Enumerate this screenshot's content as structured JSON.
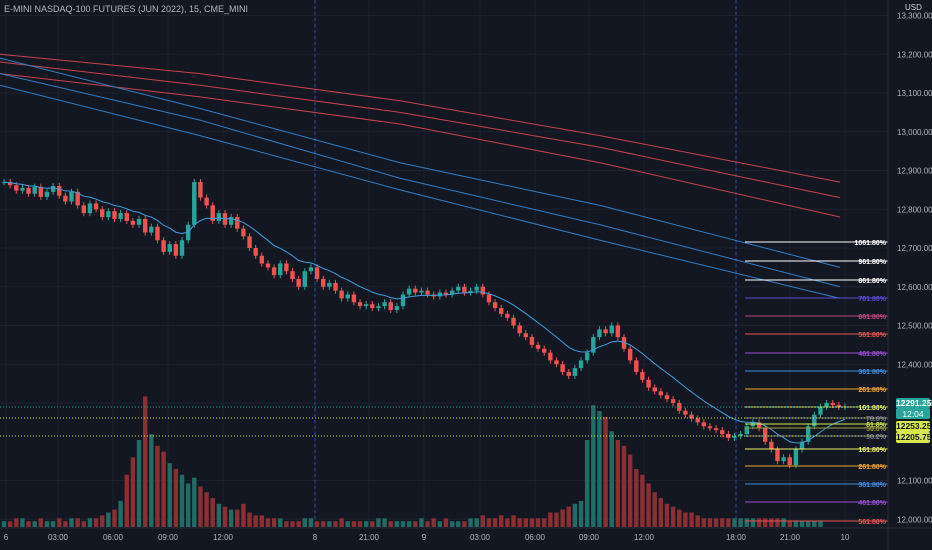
{
  "header": {
    "title": "E-MINI NASDAQ-100 FUTURES (JUN 2022), 15, CME_MINI",
    "currency": "USD"
  },
  "colors": {
    "background": "#131722",
    "up": "#26a69a",
    "down": "#ef5350",
    "vol_up": "#1f6e66",
    "vol_down": "#8b2f33",
    "ma_red": "#c9434a",
    "ma_blue": "#2f7fc9",
    "ema": "#3da0e0"
  },
  "price_axis": {
    "labels": [
      "13,300.00",
      "13,200.00",
      "13,100.00",
      "13,000.00",
      "12,900.00",
      "12,800.00",
      "12,700.00",
      "12,600.00",
      "12,500.00",
      "12,400.00",
      "12,300.00",
      "12,100.00",
      "12,000.00"
    ],
    "tags": {
      "last": "12291.25",
      "countdown": "12:04",
      "level_a": "12253.25",
      "level_b": "12205.75"
    }
  },
  "time_axis": [
    "6",
    "03:00",
    "06:00",
    "09:00",
    "12:00",
    "8",
    "21:00",
    "9",
    "03:00",
    "06:00",
    "09:00",
    "12:00",
    "18:00",
    "21:00",
    "10"
  ],
  "fib_labels": [
    {
      "text": "1061.80%",
      "color": "#ffffff"
    },
    {
      "text": "961.80%",
      "color": "#ffffff"
    },
    {
      "text": "861.80%",
      "color": "#ffffff"
    },
    {
      "text": "761.80%",
      "color": "#5b4bd6"
    },
    {
      "text": "661.80%",
      "color": "#c2457f"
    },
    {
      "text": "561.80%",
      "color": "#ef5350"
    },
    {
      "text": "461.80%",
      "color": "#9c4ed6"
    },
    {
      "text": "361.80%",
      "color": "#3d8fe0"
    },
    {
      "text": "261.80%",
      "color": "#f2a72e"
    },
    {
      "text": "161.80%",
      "color": "#eef064"
    },
    {
      "text": "78.6%",
      "color": "#7a7f8e"
    },
    {
      "text": "61.8%",
      "color": "#d6e84a"
    },
    {
      "text": "50.0%",
      "color": "#9c9f33"
    },
    {
      "text": "38.2%",
      "color": "#7a7f8e"
    },
    {
      "text": "161.80%",
      "color": "#eef064"
    },
    {
      "text": "261.80%",
      "color": "#f2a72e"
    },
    {
      "text": "361.80%",
      "color": "#3d8fe0"
    },
    {
      "text": "461.80%",
      "color": "#9c4ed6"
    },
    {
      "text": "561.80%",
      "color": "#ef5350"
    }
  ],
  "chart_data": {
    "type": "candlestick",
    "price_range": [
      11980,
      13340
    ],
    "closes": [
      12870,
      12862,
      12848,
      12855,
      12840,
      12858,
      12832,
      12845,
      12860,
      12835,
      12820,
      12845,
      12810,
      12790,
      12815,
      12800,
      12780,
      12795,
      12775,
      12790,
      12770,
      12760,
      12775,
      12740,
      12755,
      12720,
      12690,
      12710,
      12680,
      12720,
      12760,
      12870,
      12830,
      12810,
      12770,
      12790,
      12760,
      12780,
      12750,
      12730,
      12700,
      12680,
      12660,
      12650,
      12630,
      12660,
      12640,
      12620,
      12600,
      12640,
      12650,
      12620,
      12600,
      12610,
      12590,
      12570,
      12580,
      12560,
      12550,
      12555,
      12545,
      12550,
      12560,
      12540,
      12550,
      12580,
      12595,
      12585,
      12590,
      12580,
      12575,
      12585,
      12580,
      12590,
      12600,
      12585,
      12590,
      12600,
      12580,
      12560,
      12545,
      12530,
      12520,
      12500,
      12480,
      12470,
      12450,
      12440,
      12430,
      12410,
      12400,
      12380,
      12370,
      12390,
      12410,
      12430,
      12470,
      12490,
      12480,
      12500,
      12470,
      12440,
      12410,
      12380,
      12360,
      12340,
      12330,
      12320,
      12310,
      12300,
      12280,
      12270,
      12260,
      12250,
      12240,
      12235,
      12230,
      12220,
      12210,
      12215,
      12220,
      12240,
      12250,
      12235,
      12200,
      12180,
      12150,
      12160,
      12140,
      12180,
      12200,
      12240,
      12270,
      12290,
      12300,
      12295,
      12290,
      12291
    ],
    "volume_profile": [
      2,
      2,
      3,
      3,
      2,
      2,
      3,
      2,
      2,
      3,
      2,
      3,
      3,
      2,
      3,
      3,
      4,
      5,
      6,
      9,
      18,
      24,
      30,
      45,
      32,
      28,
      26,
      22,
      20,
      18,
      15,
      17,
      14,
      12,
      10,
      8,
      7,
      6,
      6,
      8,
      5,
      4,
      4,
      3,
      3,
      3,
      2,
      2,
      2,
      3,
      3,
      2,
      2,
      2,
      2,
      3,
      2,
      2,
      2,
      2,
      2,
      3,
      3,
      2,
      2,
      2,
      2,
      2,
      3,
      2,
      3,
      2,
      3,
      2,
      2,
      2,
      3,
      3,
      4,
      3,
      3,
      4,
      3,
      4,
      3,
      3,
      3,
      3,
      3,
      5,
      5,
      6,
      7,
      8,
      9,
      30,
      42,
      40,
      38,
      33,
      30,
      28,
      25,
      20,
      18,
      15,
      12,
      10,
      8,
      7,
      6,
      5,
      5,
      4,
      3,
      3,
      3,
      3,
      3,
      3,
      3,
      3,
      3,
      3,
      3,
      3,
      3,
      3,
      2,
      2,
      2,
      2,
      2,
      2
    ]
  }
}
